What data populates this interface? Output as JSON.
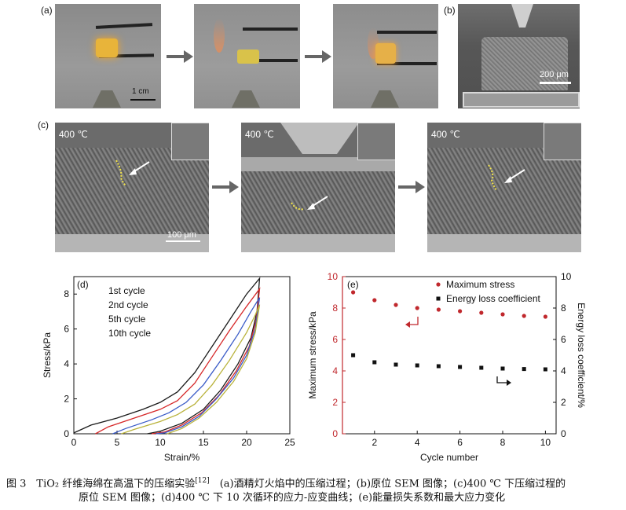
{
  "panel_labels": {
    "a": "(a)",
    "b": "(b)",
    "c": "(c)",
    "d": "(d)",
    "e": "(e)"
  },
  "scalebars": {
    "a": "1 cm",
    "b": "200 μm",
    "c": "100 μm"
  },
  "sem_temp": "400 ℃",
  "caption": {
    "line1": "图 3　TiO₂ 纤维海绵在高温下的压缩实验",
    "ref": "[12]",
    "line1_rest": "　(a)酒精灯火焰中的压缩过程；(b)原位 SEM 图像；(c)400 ℃ 下压缩过程的",
    "line2": "原位 SEM 图像；(d)400 ℃ 下 10 次循环的应力-应变曲线；(e)能量损失系数和最大应力变化"
  },
  "colors": {
    "cycle1": "#1a1a1a",
    "cycle2": "#d62728",
    "cycle5": "#3a5bc7",
    "cycle10": "#b9b23a",
    "max_stress": "#c0282d",
    "energy_loss": "#111111",
    "axis_red": "#c0282d"
  },
  "chart_data": [
    {
      "type": "line",
      "panel": "(d)",
      "xlabel": "Strain/%",
      "ylabel": "Stress/kPa",
      "xlim": [
        0,
        25
      ],
      "ylim": [
        0,
        9
      ],
      "xticks": [
        0,
        5,
        10,
        15,
        20,
        25
      ],
      "yticks": [
        0,
        2,
        4,
        6,
        8
      ],
      "legend_position": "top-left",
      "series": [
        {
          "name": "1st cycle",
          "loading": [
            [
              0,
              0.05
            ],
            [
              2,
              0.5
            ],
            [
              5,
              0.9
            ],
            [
              8,
              1.4
            ],
            [
              10,
              1.8
            ],
            [
              12,
              2.4
            ],
            [
              14,
              3.5
            ],
            [
              16,
              5.0
            ],
            [
              18,
              6.5
            ],
            [
              20,
              8.0
            ],
            [
              21.5,
              8.9
            ]
          ],
          "unloading": [
            [
              21.5,
              8.9
            ],
            [
              21.2,
              7.0
            ],
            [
              20.5,
              5.5
            ],
            [
              19,
              4.0
            ],
            [
              17,
              2.5
            ],
            [
              15,
              1.4
            ],
            [
              12.5,
              0.6
            ],
            [
              10,
              0.15
            ],
            [
              8.5,
              0
            ]
          ]
        },
        {
          "name": "2nd cycle",
          "loading": [
            [
              2.5,
              0
            ],
            [
              4,
              0.4
            ],
            [
              7,
              0.9
            ],
            [
              10,
              1.4
            ],
            [
              12,
              1.9
            ],
            [
              14,
              2.9
            ],
            [
              16,
              4.4
            ],
            [
              18,
              5.9
            ],
            [
              20,
              7.3
            ],
            [
              21.5,
              8.3
            ]
          ],
          "unloading": [
            [
              21.5,
              8.3
            ],
            [
              21.1,
              6.5
            ],
            [
              20.3,
              5.0
            ],
            [
              18.8,
              3.6
            ],
            [
              16.8,
              2.2
            ],
            [
              14.8,
              1.2
            ],
            [
              12.5,
              0.5
            ],
            [
              10.5,
              0.1
            ],
            [
              9,
              0
            ]
          ]
        },
        {
          "name": "5th cycle",
          "loading": [
            [
              4.5,
              0
            ],
            [
              6,
              0.3
            ],
            [
              9,
              0.8
            ],
            [
              11,
              1.2
            ],
            [
              13,
              1.8
            ],
            [
              15,
              2.8
            ],
            [
              17,
              4.2
            ],
            [
              19,
              5.7
            ],
            [
              20.5,
              7.0
            ],
            [
              21.5,
              7.8
            ]
          ],
          "unloading": [
            [
              21.5,
              7.8
            ],
            [
              21,
              6.0
            ],
            [
              20,
              4.5
            ],
            [
              18.5,
              3.2
            ],
            [
              16.5,
              2.0
            ],
            [
              14.5,
              1.0
            ],
            [
              12.5,
              0.4
            ],
            [
              10.5,
              0.05
            ],
            [
              9.5,
              0
            ]
          ]
        },
        {
          "name": "10th cycle",
          "loading": [
            [
              5.5,
              0
            ],
            [
              7,
              0.25
            ],
            [
              10,
              0.7
            ],
            [
              12,
              1.1
            ],
            [
              14,
              1.7
            ],
            [
              16,
              2.8
            ],
            [
              18,
              4.2
            ],
            [
              20,
              5.8
            ],
            [
              21,
              6.8
            ],
            [
              21.5,
              7.4
            ]
          ],
          "unloading": [
            [
              21.5,
              7.4
            ],
            [
              21,
              5.8
            ],
            [
              20,
              4.3
            ],
            [
              18.5,
              3.0
            ],
            [
              16.5,
              1.8
            ],
            [
              14.5,
              0.9
            ],
            [
              12.5,
              0.3
            ],
            [
              10.8,
              0
            ]
          ]
        }
      ]
    },
    {
      "type": "scatter",
      "panel": "(e)",
      "xlabel": "Cycle number",
      "ylabel": "Maximum stress/kPa",
      "ylabel_right": "Energy loss coefficient/%",
      "xlim": [
        0.5,
        10.5
      ],
      "ylim": [
        0,
        10
      ],
      "ylim_right": [
        0,
        10
      ],
      "xticks": [
        2,
        4,
        6,
        8,
        10
      ],
      "yticks": [
        0,
        2,
        4,
        6,
        8,
        10
      ],
      "legend_position": "top-right",
      "series": [
        {
          "name": "Maximum stress",
          "axis": "left",
          "x": [
            1,
            2,
            3,
            4,
            5,
            6,
            7,
            8,
            9,
            10
          ],
          "y": [
            9.0,
            8.5,
            8.2,
            8.0,
            7.9,
            7.8,
            7.7,
            7.6,
            7.5,
            7.45
          ]
        },
        {
          "name": "Energy loss coefficient",
          "axis": "right",
          "x": [
            1,
            2,
            3,
            4,
            5,
            6,
            7,
            8,
            9,
            10
          ],
          "y": [
            5.0,
            4.55,
            4.4,
            4.35,
            4.3,
            4.25,
            4.2,
            4.15,
            4.12,
            4.1
          ]
        }
      ]
    }
  ]
}
